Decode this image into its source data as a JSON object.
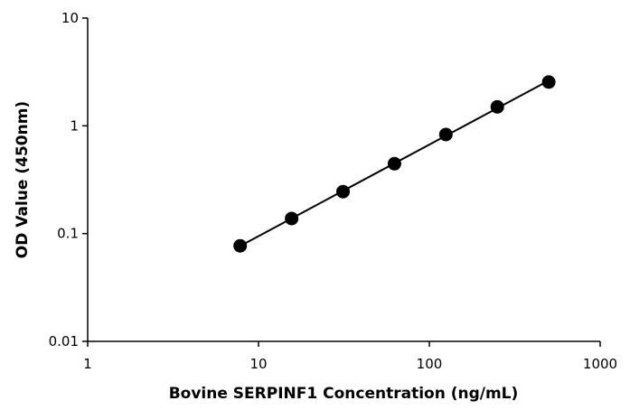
{
  "chart_data": {
    "type": "scatter",
    "xlabel": "Bovine SERPINF1 Concentration (ng/mL)",
    "ylabel": "OD Value (450nm)",
    "x_scale": "log",
    "y_scale": "log",
    "xlim": [
      1,
      1000
    ],
    "ylim": [
      0.01,
      10
    ],
    "x_ticks": [
      "1",
      "10",
      "100",
      "1000"
    ],
    "y_ticks": [
      "0.01",
      "0.1",
      "1",
      "10"
    ],
    "grid": false,
    "legend": "none",
    "fit_line": true,
    "series": [
      {
        "x": [
          7.81,
          15.63,
          31.25,
          62.5,
          125,
          250,
          500
        ],
        "y": [
          0.077,
          0.138,
          0.245,
          0.445,
          0.83,
          1.5,
          2.55
        ]
      }
    ],
    "colors": {
      "marker": "#000000",
      "line": "#000000",
      "axis": "#000000"
    }
  }
}
